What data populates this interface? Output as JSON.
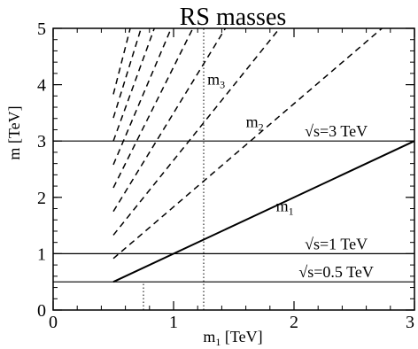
{
  "chart_data": {
    "type": "line",
    "title": "RS masses",
    "xlabel": "m",
    "xlabel_sub": "1",
    "xlabel_unit": " [TeV]",
    "ylabel": "m [TeV]",
    "xlim": [
      0,
      3
    ],
    "ylim": [
      0,
      5
    ],
    "x_ticks": [
      0,
      1,
      2,
      3
    ],
    "y_ticks": [
      0,
      1,
      2,
      3,
      4,
      5
    ],
    "x_minor_step": 0.2,
    "y_minor_step": 0.2,
    "grid": false,
    "solid_series": {
      "name": "m1",
      "label_main": "m",
      "label_sub": "1",
      "points": [
        [
          0.5,
          0.5
        ],
        [
          3.0,
          3.0
        ]
      ]
    },
    "dashed_series": [
      {
        "name": "m2",
        "label_main": "m",
        "label_sub": "2",
        "points": [
          [
            0.5,
            0.915
          ],
          [
            2.73,
            5.0
          ]
        ]
      },
      {
        "name": "m3",
        "label_main": "m",
        "label_sub": "3",
        "points": [
          [
            0.5,
            1.33
          ],
          [
            1.88,
            5.0
          ]
        ]
      },
      {
        "points": [
          [
            0.5,
            1.75
          ],
          [
            1.43,
            5.0
          ]
        ]
      },
      {
        "points": [
          [
            0.5,
            2.17
          ],
          [
            1.16,
            5.0
          ]
        ]
      },
      {
        "points": [
          [
            0.5,
            2.58
          ],
          [
            0.98,
            5.0
          ]
        ]
      },
      {
        "points": [
          [
            0.5,
            3.0
          ],
          [
            0.84,
            5.0
          ]
        ]
      },
      {
        "points": [
          [
            0.5,
            3.41
          ],
          [
            0.73,
            5.0
          ]
        ]
      },
      {
        "points": [
          [
            0.5,
            3.83
          ],
          [
            0.64,
            5.0
          ]
        ]
      }
    ],
    "horizontal_lines": [
      {
        "label": "√s=3 TeV",
        "y": 3.0
      },
      {
        "label": "√s=1 TeV",
        "y": 1.0
      },
      {
        "label": "√s=0.5 TeV",
        "y": 0.5
      }
    ],
    "vertical_dotted": [
      {
        "x": 0.75,
        "y_top": 0.5
      },
      {
        "x": 1.25,
        "y_top": 5.0
      }
    ]
  }
}
